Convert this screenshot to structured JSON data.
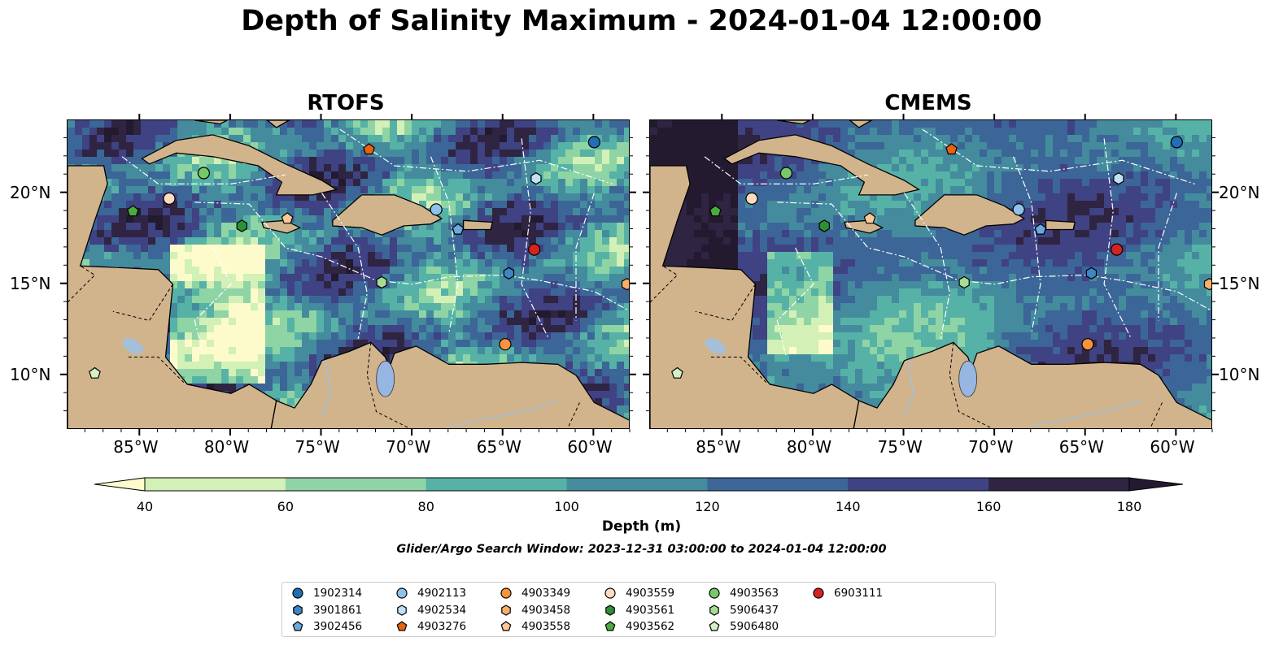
{
  "title": "Depth of Salinity Maximum - 2024-01-04 12:00:00",
  "panels": [
    {
      "title": "RTOFS"
    },
    {
      "title": "CMEMS"
    }
  ],
  "axes": {
    "x_ticks": [
      "85°W",
      "80°W",
      "75°W",
      "70°W",
      "65°W",
      "60°W"
    ],
    "y_ticks": [
      "20°N",
      "15°N",
      "10°N"
    ]
  },
  "colorbar": {
    "label": "Depth (m)",
    "ticks": [
      "40",
      "60",
      "80",
      "100",
      "120",
      "140",
      "160",
      "180"
    ],
    "colors": [
      "#fdfbcc",
      "#d3f0b6",
      "#8fd4a4",
      "#56b2a6",
      "#448b9e",
      "#3b6697",
      "#3f4283",
      "#2f2442",
      "#241a30"
    ]
  },
  "subtitle": "Glider/Argo Search Window: 2023-12-31 03:00:00 to 2024-01-04 12:00:00",
  "colors": {
    "land": "#d1b48c",
    "lake": "#97b6e1",
    "river": "#a6bfd8",
    "eez": "#ffffff"
  },
  "legend": [
    {
      "label": "1902314",
      "marker": "circle",
      "color": "#1f6fb4"
    },
    {
      "label": "3901861",
      "marker": "hexagon",
      "color": "#3d85c4"
    },
    {
      "label": "3902456",
      "marker": "pentagon",
      "color": "#6aa9dc"
    },
    {
      "label": "4902113",
      "marker": "circle",
      "color": "#8ec2ea"
    },
    {
      "label": "4902534",
      "marker": "hexagon",
      "color": "#c2e0f5"
    },
    {
      "label": "4903276",
      "marker": "pentagon",
      "color": "#e8630f"
    },
    {
      "label": "4903349",
      "marker": "circle",
      "color": "#f7943c"
    },
    {
      "label": "4903458",
      "marker": "hexagon",
      "color": "#fbae6b"
    },
    {
      "label": "4903558",
      "marker": "pentagon",
      "color": "#fcc899"
    },
    {
      "label": "4903559",
      "marker": "circle",
      "color": "#fddcc0"
    },
    {
      "label": "4903561",
      "marker": "hexagon",
      "color": "#2e8f36"
    },
    {
      "label": "4903562",
      "marker": "pentagon",
      "color": "#4aab3f"
    },
    {
      "label": "4903563",
      "marker": "circle",
      "color": "#76c868"
    },
    {
      "label": "5906437",
      "marker": "hexagon",
      "color": "#a6dc93"
    },
    {
      "label": "5906480",
      "marker": "pentagon",
      "color": "#d4f0c4"
    },
    {
      "label": "6903111",
      "marker": "circle",
      "color": "#d7231f"
    }
  ],
  "floats": [
    {
      "id": "1902314",
      "lon": -60.0,
      "lat": 22.8
    },
    {
      "id": "3901861",
      "lon": -64.7,
      "lat": 15.6
    },
    {
      "id": "3902456",
      "lon": -67.5,
      "lat": 18.0
    },
    {
      "id": "4902113",
      "lon": -68.7,
      "lat": 19.1
    },
    {
      "id": "4902534",
      "lon": -63.2,
      "lat": 20.8
    },
    {
      "id": "4903276",
      "lon": -72.4,
      "lat": 22.4
    },
    {
      "id": "4903349",
      "lon": -64.9,
      "lat": 11.7
    },
    {
      "id": "4903458",
      "lon": -58.2,
      "lat": 15.0
    },
    {
      "id": "4903558",
      "lon": -76.9,
      "lat": 18.6
    },
    {
      "id": "4903559",
      "lon": -83.4,
      "lat": 19.7
    },
    {
      "id": "4903561",
      "lon": -79.4,
      "lat": 18.2
    },
    {
      "id": "4903562",
      "lon": -85.4,
      "lat": 19.0
    },
    {
      "id": "4903563",
      "lon": -81.5,
      "lat": 21.1
    },
    {
      "id": "5906437",
      "lon": -71.7,
      "lat": 15.1
    },
    {
      "id": "5906480",
      "lon": -87.5,
      "lat": 10.1
    },
    {
      "id": "6903111",
      "lon": -63.3,
      "lat": 16.9
    }
  ]
}
